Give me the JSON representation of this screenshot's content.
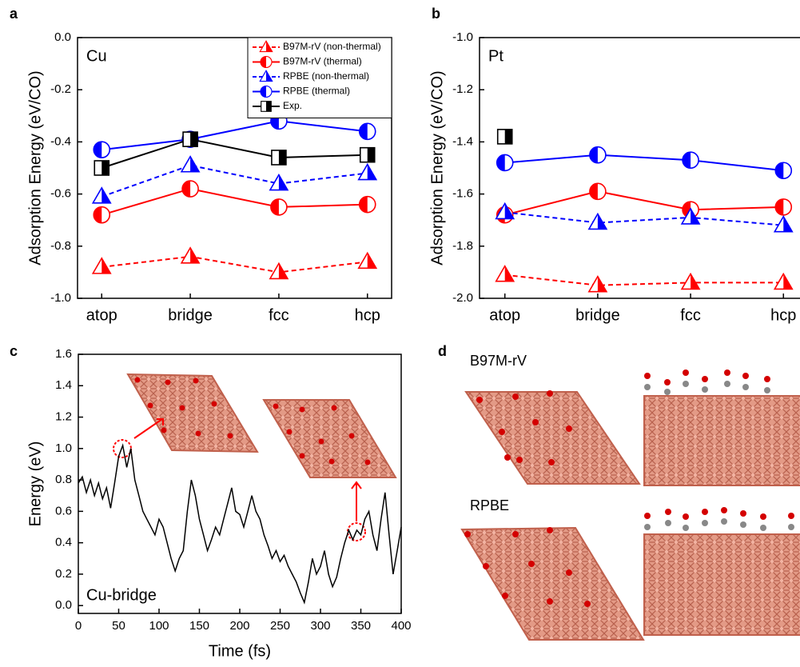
{
  "chart_data": [
    {
      "type": "line",
      "label": "a",
      "title": "Cu",
      "ylabel": "Adsorption Energy (eV/CO)",
      "categories": [
        "atop",
        "bridge",
        "fcc",
        "hcp"
      ],
      "ylim": [
        -1.0,
        0.0
      ],
      "yticks": [
        {
          "value": -1.0,
          "label": "-1.0"
        },
        -0.8,
        -0.6,
        -0.4,
        -0.2,
        {
          "value": 0,
          "label": "0.0"
        }
      ],
      "legend": "upper right",
      "series": [
        {
          "name": "B97M-rV (non-thermal)",
          "color": "#ff0000",
          "marker": "triangle",
          "dash": true,
          "values": [
            -0.88,
            -0.84,
            -0.9,
            -0.86
          ]
        },
        {
          "name": "B97M-rV (thermal)",
          "color": "#ff0000",
          "marker": "circle",
          "dash": false,
          "values": [
            -0.68,
            -0.58,
            -0.65,
            -0.64
          ]
        },
        {
          "name": "RPBE (non-thermal)",
          "color": "#0000ff",
          "marker": "triangle",
          "dash": true,
          "values": [
            -0.61,
            -0.49,
            -0.56,
            -0.52
          ]
        },
        {
          "name": "RPBE (thermal)",
          "color": "#0000ff",
          "marker": "circle",
          "dash": false,
          "values": [
            -0.43,
            -0.39,
            -0.32,
            -0.36
          ]
        },
        {
          "name": "Exp.",
          "color": "#000000",
          "marker": "square",
          "dash": false,
          "values": [
            -0.5,
            -0.39,
            -0.46,
            -0.45
          ]
        }
      ]
    },
    {
      "type": "line",
      "label": "b",
      "title": "Pt",
      "ylabel": "Adsorption Energy (eV/CO)",
      "categories": [
        "atop",
        "bridge",
        "fcc",
        "hcp"
      ],
      "ylim": [
        -2.0,
        -1.0
      ],
      "yticks": [
        {
          "value": -2.0,
          "label": "-2.0"
        },
        -1.8,
        -1.6,
        -1.4,
        -1.2,
        {
          "value": -1.0,
          "label": "-1.0"
        }
      ],
      "series": [
        {
          "color": "#ff0000",
          "marker": "triangle",
          "dash": true,
          "values": [
            -1.91,
            -1.95,
            -1.94,
            -1.94
          ]
        },
        {
          "color": "#ff0000",
          "marker": "circle",
          "dash": false,
          "values": [
            -1.68,
            -1.59,
            -1.66,
            -1.65
          ]
        },
        {
          "color": "#0000ff",
          "marker": "triangle",
          "dash": true,
          "values": [
            -1.67,
            -1.71,
            -1.69,
            -1.72
          ]
        },
        {
          "color": "#0000ff",
          "marker": "circle",
          "dash": false,
          "values": [
            -1.48,
            -1.45,
            -1.47,
            -1.51
          ]
        },
        {
          "color": "#000000",
          "marker": "square",
          "dash": false,
          "values": [
            -1.38,
            null,
            null,
            null
          ]
        }
      ]
    },
    {
      "type": "line",
      "label": "c",
      "xlabel": "Time (fs)",
      "ylabel": "Energy (eV)",
      "annotation": "Cu-bridge",
      "color": "#000000",
      "x": [
        0,
        5,
        10,
        15,
        20,
        25,
        30,
        35,
        40,
        45,
        50,
        55,
        60,
        65,
        70,
        75,
        80,
        85,
        90,
        95,
        100,
        105,
        110,
        115,
        120,
        125,
        130,
        135,
        140,
        145,
        150,
        155,
        160,
        165,
        170,
        175,
        180,
        185,
        190,
        195,
        200,
        205,
        210,
        215,
        220,
        225,
        230,
        235,
        240,
        245,
        250,
        255,
        260,
        265,
        270,
        275,
        280,
        285,
        290,
        295,
        300,
        305,
        310,
        315,
        320,
        325,
        330,
        335,
        340,
        345,
        350,
        355,
        360,
        365,
        370,
        375,
        380,
        385,
        390,
        395,
        400
      ],
      "values": [
        0.78,
        0.82,
        0.72,
        0.8,
        0.7,
        0.78,
        0.68,
        0.75,
        0.62,
        0.78,
        0.95,
        1.02,
        0.88,
        1.0,
        0.8,
        0.7,
        0.6,
        0.55,
        0.5,
        0.45,
        0.55,
        0.5,
        0.4,
        0.3,
        0.22,
        0.3,
        0.35,
        0.6,
        0.8,
        0.7,
        0.55,
        0.45,
        0.35,
        0.42,
        0.5,
        0.45,
        0.55,
        0.65,
        0.75,
        0.6,
        0.58,
        0.5,
        0.6,
        0.7,
        0.6,
        0.55,
        0.45,
        0.38,
        0.3,
        0.35,
        0.28,
        0.32,
        0.25,
        0.2,
        0.15,
        0.08,
        0.02,
        0.15,
        0.3,
        0.2,
        0.25,
        0.35,
        0.2,
        0.12,
        0.18,
        0.3,
        0.4,
        0.48,
        0.42,
        0.48,
        0.45,
        0.55,
        0.6,
        0.45,
        0.35,
        0.55,
        0.72,
        0.45,
        0.2,
        0.35,
        0.5
      ],
      "xlim": [
        0,
        400
      ],
      "xticks": [
        0,
        50,
        100,
        150,
        200,
        250,
        300,
        350,
        400
      ],
      "ylim": [
        -0.05,
        1.6
      ],
      "yticks": [
        {
          "value": 0,
          "label": "0.0"
        },
        0.2,
        0.4,
        0.6,
        0.8,
        {
          "value": 1,
          "label": "1.0"
        },
        1.2,
        1.4,
        1.6
      ]
    }
  ],
  "panel_d": {
    "label": "d",
    "texts": [
      "B97M-rV",
      "RPBE"
    ]
  }
}
